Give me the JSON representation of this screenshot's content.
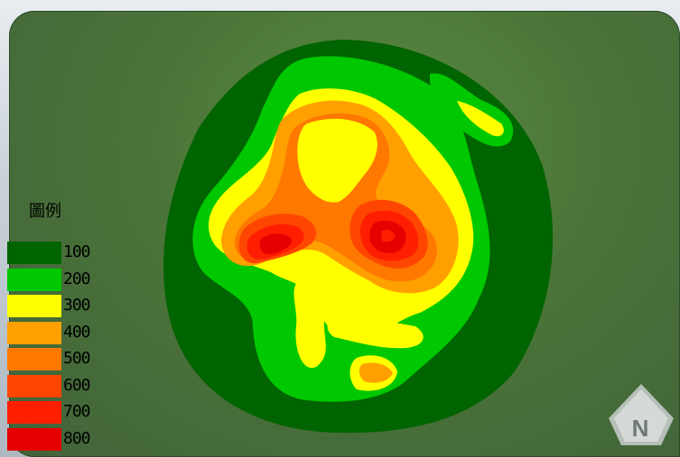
{
  "legend": {
    "title": "圖例",
    "items": [
      {
        "label": "100",
        "color": "#006400"
      },
      {
        "label": "200",
        "color": "#00c800"
      },
      {
        "label": "300",
        "color": "#ffff00"
      },
      {
        "label": "400",
        "color": "#ffa000"
      },
      {
        "label": "500",
        "color": "#ff7800"
      },
      {
        "label": "600",
        "color": "#ff4600"
      },
      {
        "label": "700",
        "color": "#ff1e00"
      },
      {
        "label": "800",
        "color": "#e60000"
      }
    ]
  },
  "north_arrow": {
    "label": "N"
  },
  "colors": {
    "background": "#4a7438"
  }
}
